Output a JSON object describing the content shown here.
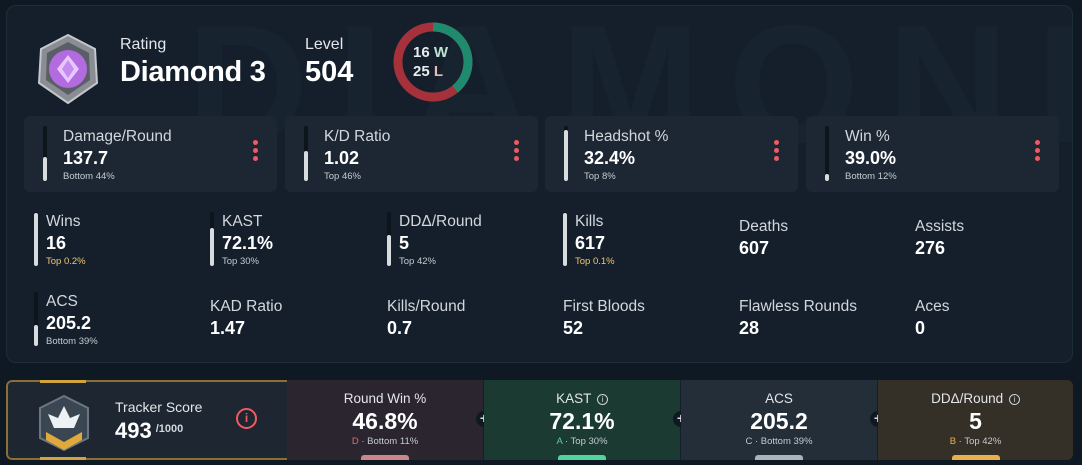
{
  "header": {
    "rating_label": "Rating",
    "rating_value": "Diamond 3",
    "level_label": "Level",
    "level_value": "504",
    "wins": "16",
    "wins_suffix": "W",
    "losses": "25",
    "losses_suffix": "L",
    "watermark": "DIAMOND",
    "win_color": "#1f8a6e",
    "loss_color": "#a5323b"
  },
  "top_stats": [
    {
      "label": "Damage/Round",
      "value": "137.7",
      "sub": "Bottom 44%",
      "fill": 0.44
    },
    {
      "label": "K/D Ratio",
      "value": "1.02",
      "sub": "Top 46%",
      "fill": 0.54
    },
    {
      "label": "Headshot %",
      "value": "32.4%",
      "sub": "Top 8%",
      "fill": 0.92
    },
    {
      "label": "Win %",
      "value": "39.0%",
      "sub": "Bottom 12%",
      "fill": 0.12
    }
  ],
  "stats": [
    {
      "label": "Wins",
      "value": "16",
      "sub": "Top 0.2%",
      "fill": 0.99
    },
    {
      "label": "KAST",
      "value": "72.1%",
      "sub": "Top 30%",
      "fill": 0.7
    },
    {
      "label": "DDΔ/Round",
      "value": "5",
      "sub": "Top 42%",
      "fill": 0.58
    },
    {
      "label": "Kills",
      "value": "617",
      "sub": "Top 0.1%",
      "fill": 0.99
    },
    {
      "label": "Deaths",
      "value": "607"
    },
    {
      "label": "Assists",
      "value": "276"
    },
    {
      "label": "ACS",
      "value": "205.2",
      "sub": "Bottom 39%",
      "fill": 0.39
    },
    {
      "label": "KAD Ratio",
      "value": "1.47"
    },
    {
      "label": "Kills/Round",
      "value": "0.7"
    },
    {
      "label": "First Bloods",
      "value": "52"
    },
    {
      "label": "Flawless Rounds",
      "value": "28"
    },
    {
      "label": "Aces",
      "value": "0"
    }
  ],
  "tracker": {
    "label": "Tracker Score",
    "value": "493",
    "max": "/1000",
    "info_icon": "i",
    "segments": [
      {
        "label": "Round Win %",
        "value": "46.8%",
        "grade": "D",
        "sub": " · Bottom 11%",
        "grade_color": "#e36b74",
        "has_info": false,
        "bg": "#2b2530",
        "tick": "#c9868b"
      },
      {
        "label": "KAST",
        "value": "72.1%",
        "grade": "A",
        "sub": " · Top 30%",
        "grade_color": "#4fd49a",
        "has_info": true,
        "bg": "#1b3a31",
        "tick": "#4fd49a"
      },
      {
        "label": "ACS",
        "value": "205.2",
        "grade": "C",
        "sub": " · Bottom 39%",
        "grade_color": "#bfc6cc",
        "has_info": false,
        "bg": "#232e39",
        "tick": "#aab3ba"
      },
      {
        "label": "DDΔ/Round",
        "value": "5",
        "grade": "B",
        "sub": " · Top 42%",
        "grade_color": "#e8b04d",
        "has_info": true,
        "bg": "#342f27",
        "tick": "#e8b04d"
      }
    ]
  }
}
